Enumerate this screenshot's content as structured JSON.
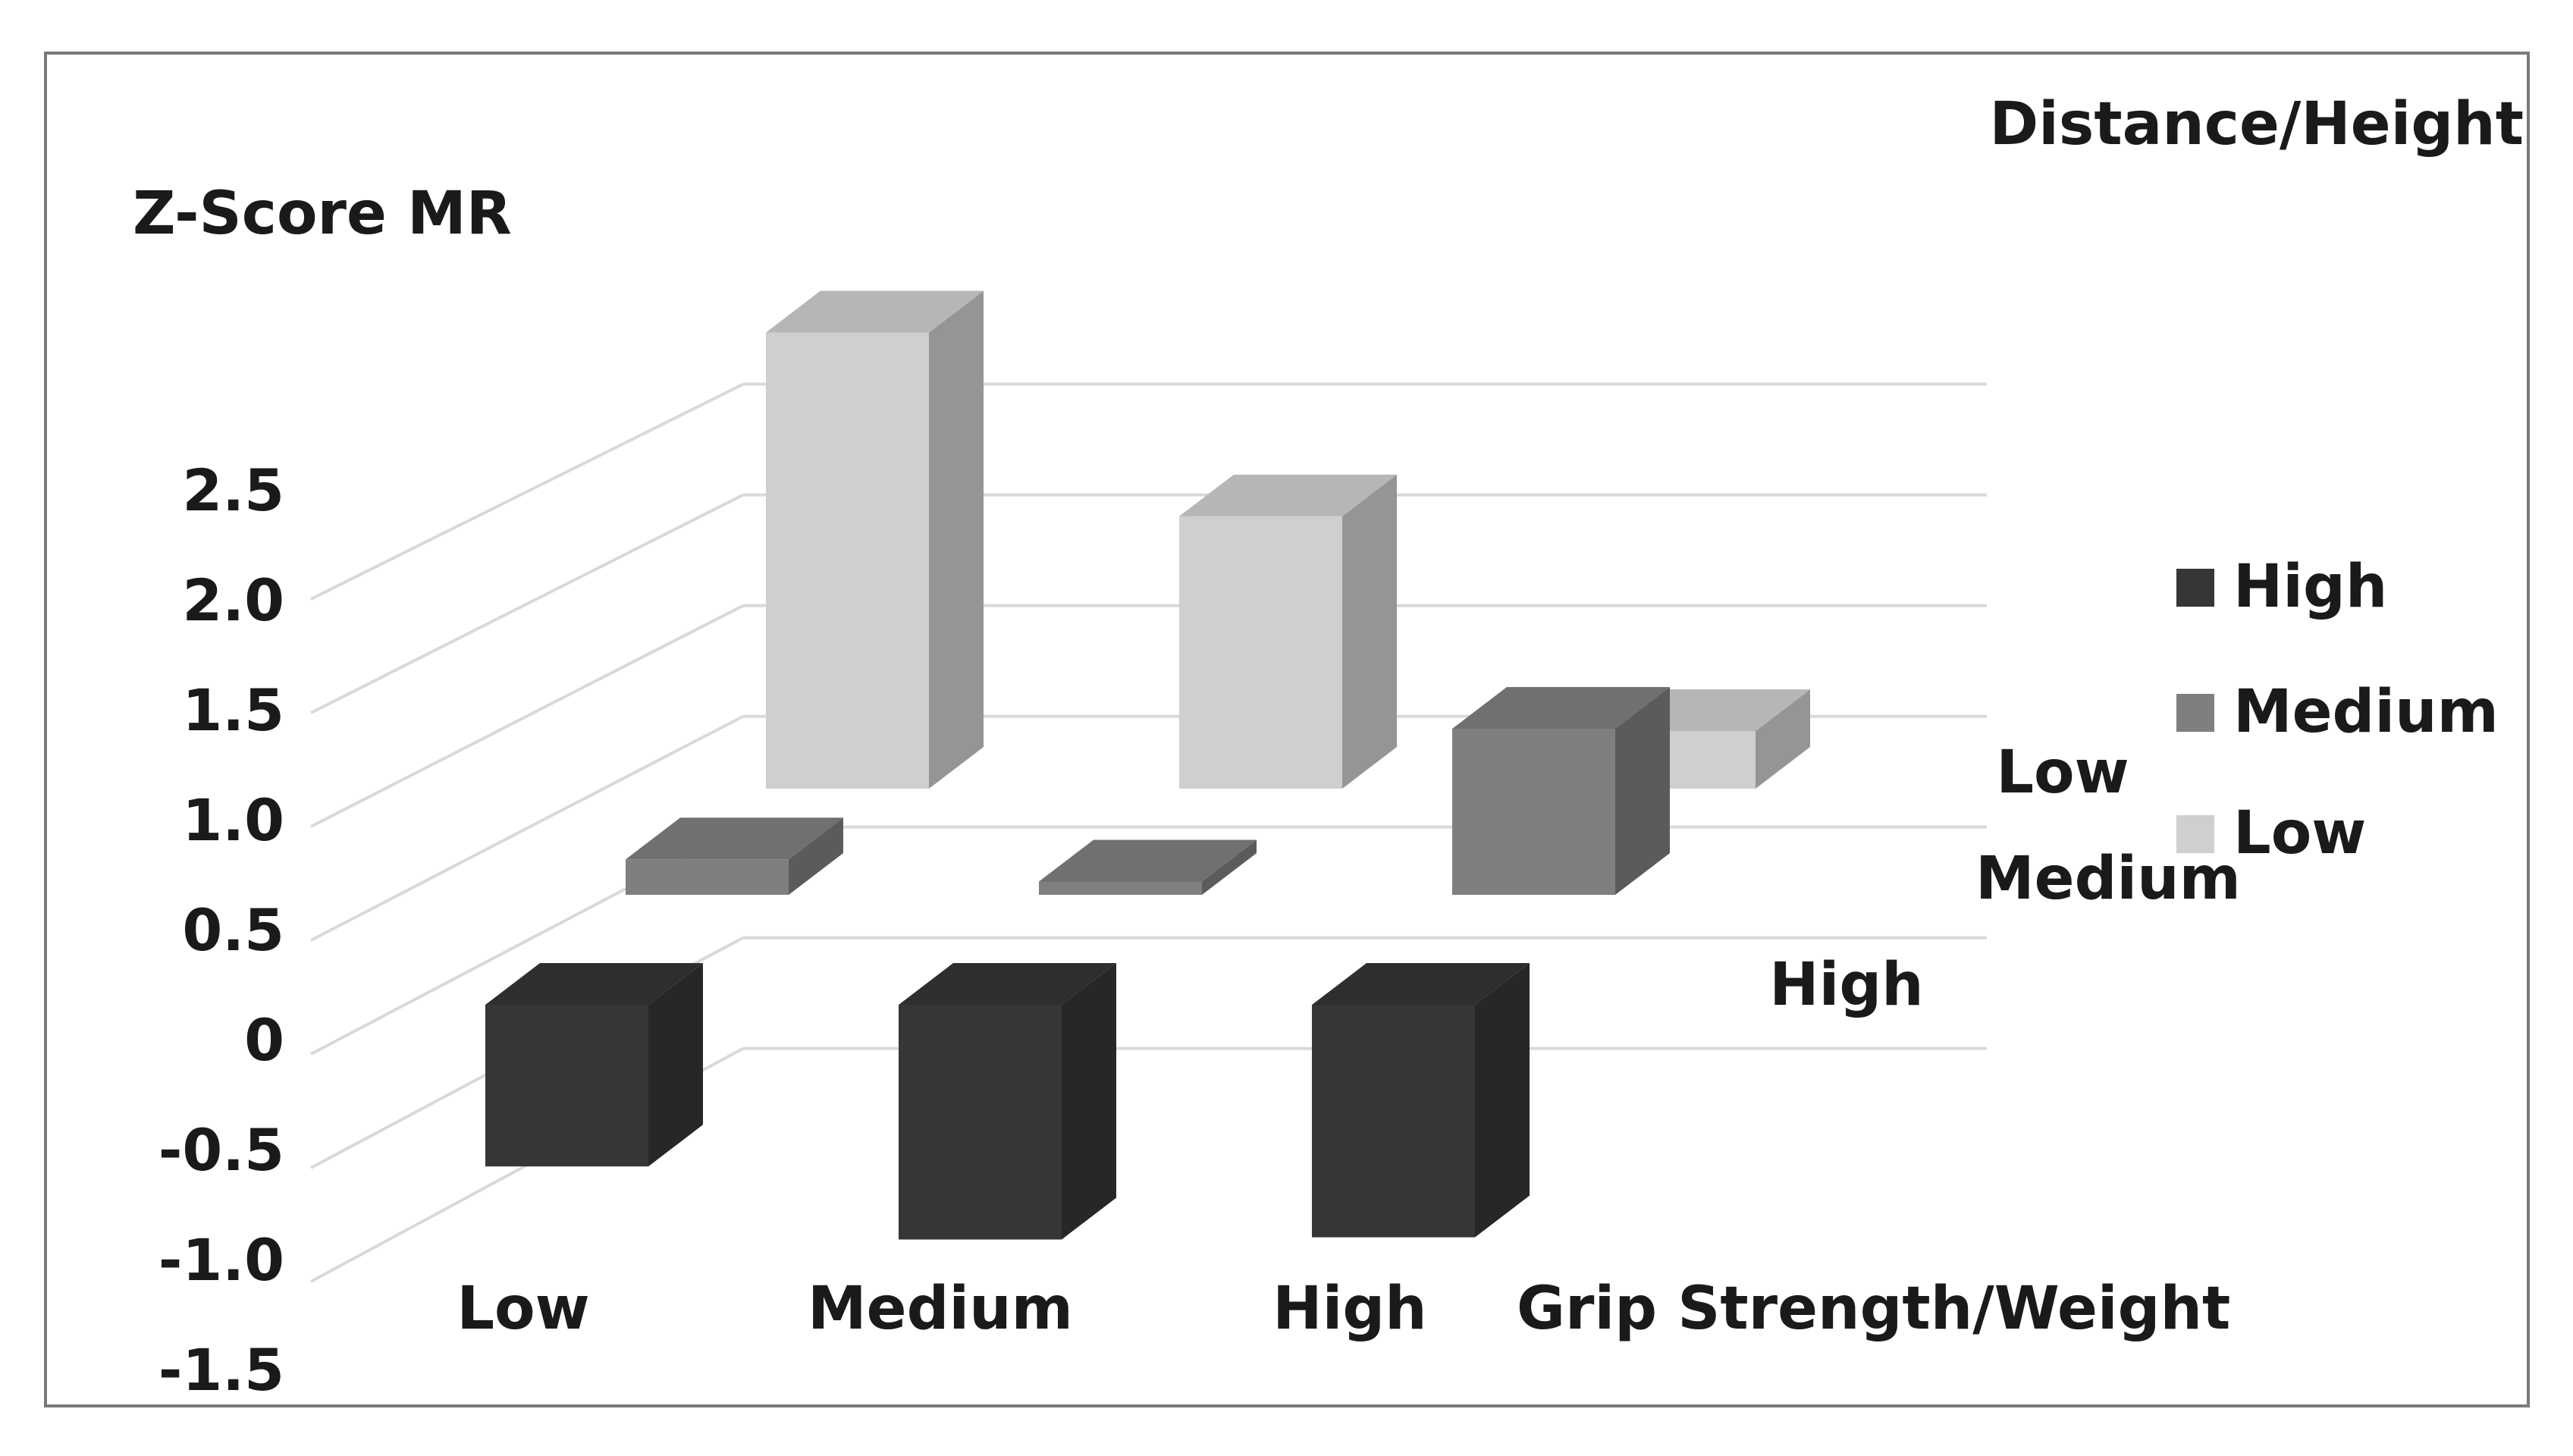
{
  "chart_data": {
    "type": "bar",
    "subtype": "3d-clustered",
    "title": "",
    "ylabel": "Z-Score MR",
    "xlabel": "Grip Strength/Weight",
    "zlabel": "Distance/Height",
    "ylim": [
      -1.5,
      2.5
    ],
    "yticks": [
      "2.5",
      "2.0",
      "1.5",
      "1.0",
      "0.5",
      "0",
      "-0.5",
      "-1.0",
      "-1.5"
    ],
    "ytick_values": [
      2.5,
      2.0,
      1.5,
      1.0,
      0.5,
      0,
      -0.5,
      -1.0,
      -1.5
    ],
    "categories": [
      "Low",
      "Medium",
      "High"
    ],
    "depth_categories": [
      "Low",
      "Medium",
      "High"
    ],
    "grid": true,
    "legend_position": "right",
    "series": [
      {
        "name": "Low",
        "values": [
          2.06,
          1.23,
          0.26
        ],
        "color": "#cfcfcf"
      },
      {
        "name": "Medium",
        "values": [
          0.16,
          0.06,
          0.75
        ],
        "color": "#7f7f7f"
      },
      {
        "name": "High",
        "values": [
          -0.73,
          -1.06,
          -1.05
        ],
        "color": "#383536"
      }
    ],
    "legend": [
      {
        "label": "High",
        "color": "#383536"
      },
      {
        "label": "Medium",
        "color": "#7f7f7f"
      },
      {
        "label": "Low",
        "color": "#cfcfcf"
      }
    ]
  }
}
